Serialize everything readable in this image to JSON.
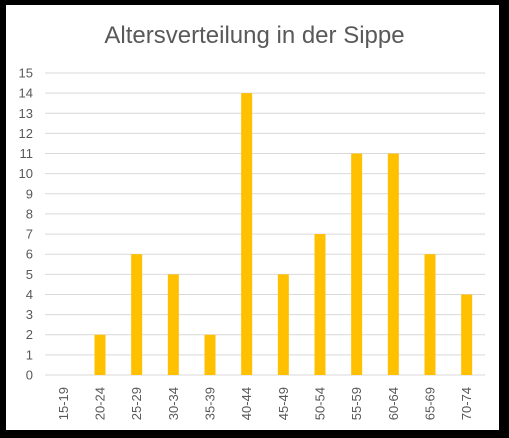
{
  "chart_data": {
    "type": "bar",
    "title": "Altersverteilung in der Sippe",
    "xlabel": "",
    "ylabel": "",
    "categories": [
      "15-19",
      "20-24",
      "25-29",
      "30-34",
      "35-39",
      "40-44",
      "45-49",
      "50-54",
      "55-59",
      "60-64",
      "65-69",
      "70-74"
    ],
    "values": [
      0,
      2,
      6,
      5,
      2,
      14,
      5,
      7,
      11,
      11,
      6,
      4
    ],
    "ylim": [
      0,
      15
    ],
    "yticks": [
      "0",
      "1",
      "2",
      "3",
      "4",
      "5",
      "6",
      "7",
      "8",
      "9",
      "10",
      "11",
      "12",
      "13",
      "14",
      "15"
    ],
    "grid": true,
    "bar_color": "#FFC000",
    "grid_color": "#D9D9D9",
    "text_color": "#595959"
  }
}
